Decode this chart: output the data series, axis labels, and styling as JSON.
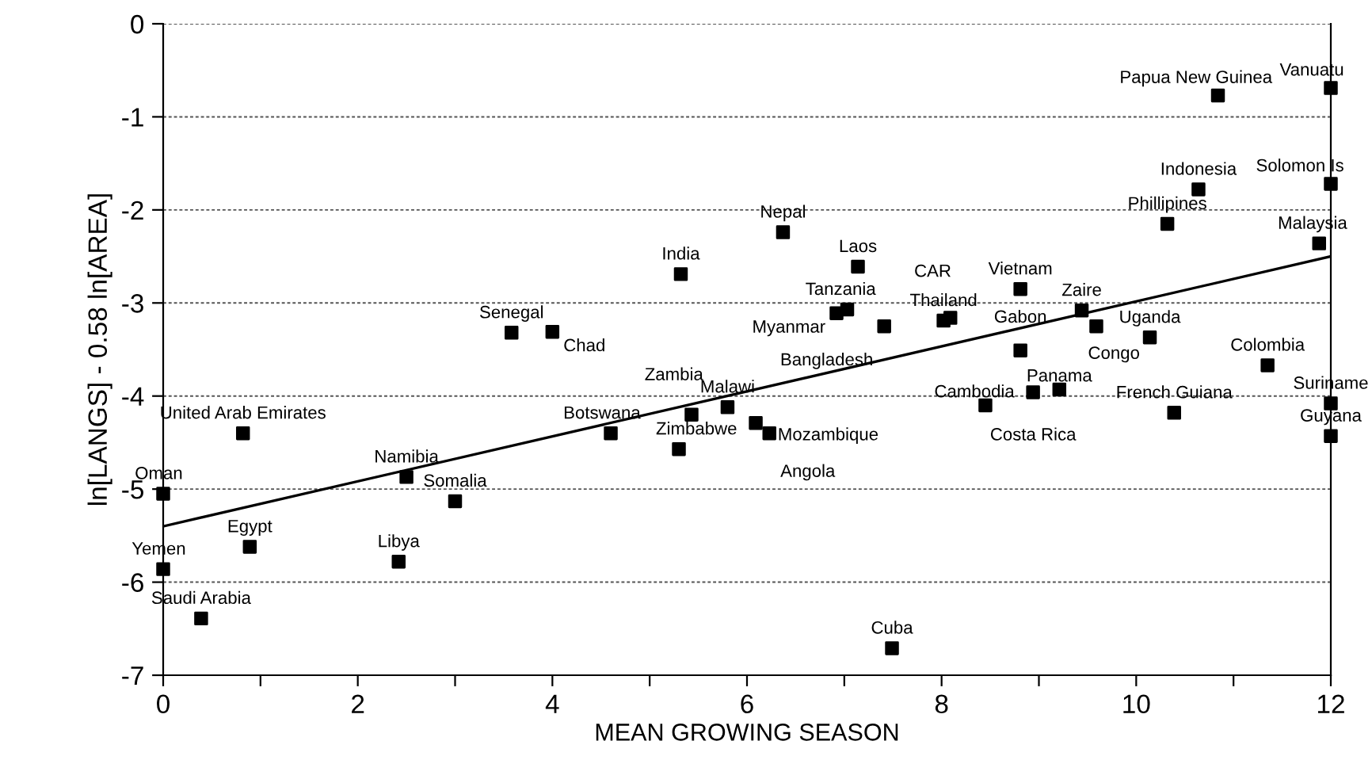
{
  "chart_data": {
    "type": "scatter",
    "xlabel": "MEAN GROWING SEASON",
    "ylabel": "ln[LANGS] - 0.58 ln[AREA]",
    "x": [
      5.32,
      3.58,
      4.0,
      0.82,
      4.6,
      5.43,
      5.8,
      5.3,
      2.5,
      3.0,
      0,
      0.89,
      2.42,
      0,
      0.39,
      6.37,
      7.14,
      7.03,
      6.92,
      7.41,
      8.09,
      8.02,
      8.81,
      9.44,
      9.59,
      10.14,
      8.81,
      11.35,
      9.21,
      8.94,
      8.45,
      10.39,
      12,
      12,
      11.88,
      10.32,
      6.09,
      6.23,
      7.49,
      10.84,
      12,
      10.64,
      12
    ],
    "series": [
      {
        "color": "#000000",
        "marker": "square",
        "values": [
          -2.69,
          -3.32,
          -3.31,
          -4.4,
          -4.4,
          -4.2,
          -4.12,
          -4.57,
          -4.87,
          -5.13,
          -5.05,
          -5.62,
          -5.78,
          -5.86,
          -6.39,
          -2.24,
          -2.61,
          -3.07,
          -3.11,
          -3.25,
          -3.16,
          -3.19,
          -2.85,
          -3.08,
          -3.25,
          -3.37,
          -3.51,
          -3.67,
          -3.93,
          -3.96,
          -4.1,
          -4.18,
          -4.08,
          -4.43,
          -2.36,
          -2.15,
          -4.29,
          -4.4,
          -6.71,
          -0.77,
          -0.69,
          -1.78,
          -1.72
        ]
      },
      {
        "type": "line",
        "color": "#000000",
        "marker": "none",
        "line_style": "solid",
        "x": [
          0,
          12
        ],
        "values": [
          -5.4,
          -2.5
        ]
      }
    ],
    "annotations": [
      {
        "text": "India",
        "x": 5.32,
        "y": -2.69
      },
      {
        "text": "Senegal",
        "x": 3.58,
        "y": -3.32
      },
      {
        "text": "Chad",
        "x": 4.0,
        "y": -3.31
      },
      {
        "text": "United Arab Emirates",
        "x": 0.82,
        "y": -4.4
      },
      {
        "text": "Botswana",
        "x": 4.6,
        "y": -4.4
      },
      {
        "text": "Zambia",
        "x": 5.43,
        "y": -4.2
      },
      {
        "text": "Malawi",
        "x": 5.8,
        "y": -4.12
      },
      {
        "text": "Zimbabwe",
        "x": 5.3,
        "y": -4.57
      },
      {
        "text": "Namibia",
        "x": 2.5,
        "y": -4.87
      },
      {
        "text": "Somalia",
        "x": 3.0,
        "y": -5.13
      },
      {
        "text": "Oman",
        "x": 0,
        "y": -5.05
      },
      {
        "text": "Egypt",
        "x": 0.89,
        "y": -5.62
      },
      {
        "text": "Libya",
        "x": 2.42,
        "y": -5.78
      },
      {
        "text": "Yemen",
        "x": 0,
        "y": -5.86
      },
      {
        "text": "Saudi Arabia",
        "x": 0.39,
        "y": -6.39
      },
      {
        "text": "Nepal",
        "x": 6.37,
        "y": -2.24
      },
      {
        "text": "Laos",
        "x": 7.14,
        "y": -2.61
      },
      {
        "text": "Tanzania",
        "x": 7.03,
        "y": -3.07
      },
      {
        "text": "Myanmar",
        "x": 6.92,
        "y": -3.11
      },
      {
        "text": "Bangladesh",
        "x": 7.41,
        "y": -3.25
      },
      {
        "text": "CAR",
        "x": 8.09,
        "y": -3.16
      },
      {
        "text": "Thailand",
        "x": 8.02,
        "y": -3.19
      },
      {
        "text": "Vietnam",
        "x": 8.81,
        "y": -2.85
      },
      {
        "text": "Zaire",
        "x": 9.44,
        "y": -3.08
      },
      {
        "text": "Congo",
        "x": 9.59,
        "y": -3.25
      },
      {
        "text": "Uganda",
        "x": 10.14,
        "y": -3.37
      },
      {
        "text": "Gabon",
        "x": 8.81,
        "y": -3.51
      },
      {
        "text": "Colombia",
        "x": 11.35,
        "y": -3.67
      },
      {
        "text": "Panama",
        "x": 9.21,
        "y": -3.93
      },
      {
        "text": "Costa Rica",
        "x": 8.94,
        "y": -3.96
      },
      {
        "text": "Cambodia",
        "x": 8.45,
        "y": -4.1
      },
      {
        "text": "French Guiana",
        "x": 10.39,
        "y": -4.18
      },
      {
        "text": "Suriname",
        "x": 12,
        "y": -4.08
      },
      {
        "text": "Guyana",
        "x": 12,
        "y": -4.43
      },
      {
        "text": "Malaysia",
        "x": 11.88,
        "y": -2.36
      },
      {
        "text": "Phillipines",
        "x": 10.32,
        "y": -2.15
      },
      {
        "text": "Mozambique",
        "x": 6.09,
        "y": -4.29
      },
      {
        "text": "Angola",
        "x": 6.23,
        "y": -4.4
      },
      {
        "text": "Cuba",
        "x": 7.49,
        "y": -6.71
      },
      {
        "text": "Papua New Guinea",
        "x": 10.84,
        "y": -0.77
      },
      {
        "text": "Vanuatu",
        "x": 12,
        "y": -0.69
      },
      {
        "text": "Indonesia",
        "x": 10.64,
        "y": -1.78
      },
      {
        "text": "Solomon Is",
        "x": 12,
        "y": -1.72
      }
    ],
    "xlim": [
      0,
      12
    ],
    "ylim": [
      -7,
      0
    ],
    "xticks": [
      0,
      {
        "value": 1,
        "label": null
      },
      2,
      {
        "value": 3,
        "label": null
      },
      4,
      {
        "value": 5,
        "label": null
      },
      6,
      {
        "value": 7,
        "label": null
      },
      8,
      {
        "value": 9,
        "label": null
      },
      10,
      {
        "value": 11,
        "label": null
      },
      12
    ],
    "yticks": [
      -7,
      -6,
      -5,
      -4,
      -3,
      -2,
      -1,
      0
    ],
    "grid": "y",
    "legend": false
  }
}
